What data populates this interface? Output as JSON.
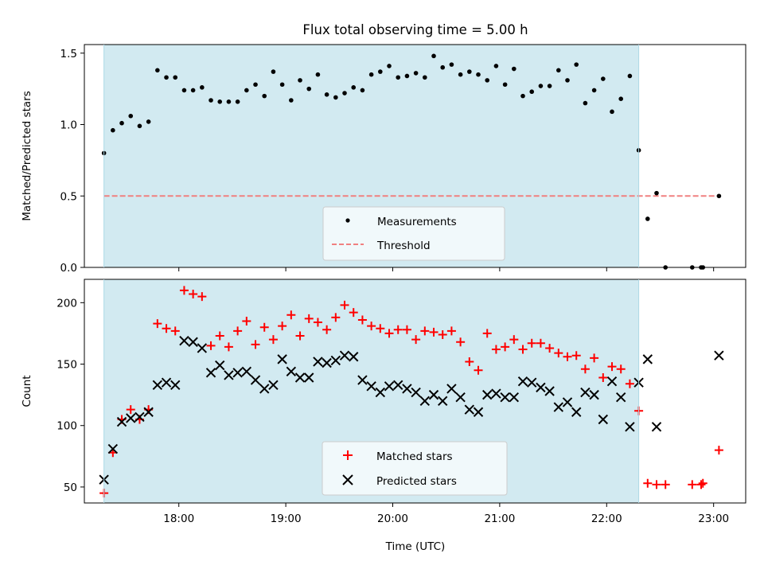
{
  "chart_data": {
    "type": "scatter",
    "title": "Flux total observing time = 5.00 h",
    "xlabel": "Time (UTC)",
    "x_ticks": [
      "18:00",
      "19:00",
      "20:00",
      "21:00",
      "22:00",
      "23:00"
    ],
    "x_range": [
      "17:07",
      "23:18"
    ],
    "shaded_interval": [
      "17:18",
      "22:18"
    ],
    "shade_color": "#add8e6",
    "panels": [
      {
        "ylabel": "Matched/Predicted stars",
        "ylim": [
          0,
          1.56
        ],
        "y_ticks": [
          "0.0",
          "0.5",
          "1.0",
          "1.5"
        ],
        "legend_position": "lower-center",
        "threshold": {
          "name": "Threshold",
          "value": 0.5,
          "color": "#f08080",
          "style": "dashed"
        },
        "series": [
          {
            "name": "Measurements",
            "marker": "dot",
            "color": "#000000",
            "points": [
              [
                "17:18",
                0.8
              ],
              [
                "17:23",
                0.96
              ],
              [
                "17:28",
                1.01
              ],
              [
                "17:33",
                1.06
              ],
              [
                "17:38",
                0.99
              ],
              [
                "17:43",
                1.02
              ],
              [
                "17:48",
                1.38
              ],
              [
                "17:53",
                1.33
              ],
              [
                "17:58",
                1.33
              ],
              [
                "18:03",
                1.24
              ],
              [
                "18:08",
                1.24
              ],
              [
                "18:13",
                1.26
              ],
              [
                "18:18",
                1.17
              ],
              [
                "18:23",
                1.16
              ],
              [
                "18:28",
                1.16
              ],
              [
                "18:33",
                1.16
              ],
              [
                "18:38",
                1.24
              ],
              [
                "18:43",
                1.28
              ],
              [
                "18:48",
                1.2
              ],
              [
                "18:53",
                1.37
              ],
              [
                "18:58",
                1.28
              ],
              [
                "19:03",
                1.17
              ],
              [
                "19:08",
                1.31
              ],
              [
                "19:13",
                1.25
              ],
              [
                "19:18",
                1.35
              ],
              [
                "19:23",
                1.21
              ],
              [
                "19:28",
                1.19
              ],
              [
                "19:33",
                1.22
              ],
              [
                "19:38",
                1.26
              ],
              [
                "19:43",
                1.24
              ],
              [
                "19:48",
                1.35
              ],
              [
                "19:53",
                1.37
              ],
              [
                "19:58",
                1.41
              ],
              [
                "20:03",
                1.33
              ],
              [
                "20:08",
                1.34
              ],
              [
                "20:13",
                1.36
              ],
              [
                "20:18",
                1.33
              ],
              [
                "20:23",
                1.48
              ],
              [
                "20:28",
                1.4
              ],
              [
                "20:33",
                1.42
              ],
              [
                "20:38",
                1.35
              ],
              [
                "20:43",
                1.37
              ],
              [
                "20:48",
                1.35
              ],
              [
                "20:53",
                1.31
              ],
              [
                "20:58",
                1.41
              ],
              [
                "21:03",
                1.28
              ],
              [
                "21:08",
                1.39
              ],
              [
                "21:13",
                1.2
              ],
              [
                "21:18",
                1.23
              ],
              [
                "21:23",
                1.27
              ],
              [
                "21:28",
                1.27
              ],
              [
                "21:33",
                1.38
              ],
              [
                "21:38",
                1.31
              ],
              [
                "21:43",
                1.42
              ],
              [
                "21:48",
                1.15
              ],
              [
                "21:53",
                1.24
              ],
              [
                "21:58",
                1.32
              ],
              [
                "22:03",
                1.09
              ],
              [
                "22:08",
                1.18
              ],
              [
                "22:13",
                1.34
              ],
              [
                "22:18",
                0.82
              ],
              [
                "22:23",
                0.34
              ],
              [
                "22:28",
                0.52
              ],
              [
                "22:33",
                0.0
              ],
              [
                "22:48",
                0.0
              ],
              [
                "22:53",
                0.0
              ],
              [
                "22:54",
                0.0
              ],
              [
                "23:03",
                0.5
              ]
            ]
          }
        ]
      },
      {
        "ylabel": "Count",
        "ylim": [
          37,
          219
        ],
        "y_ticks": [
          "50",
          "100",
          "150",
          "200"
        ],
        "legend_position": "lower-center",
        "series": [
          {
            "name": "Matched stars",
            "marker": "plus",
            "color": "#ff0000",
            "points": [
              [
                "17:18",
                45
              ],
              [
                "17:23",
                78
              ],
              [
                "17:28",
                105
              ],
              [
                "17:33",
                113
              ],
              [
                "17:38",
                105
              ],
              [
                "17:43",
                113
              ],
              [
                "17:48",
                183
              ],
              [
                "17:53",
                179
              ],
              [
                "17:58",
                177
              ],
              [
                "18:03",
                210
              ],
              [
                "18:08",
                207
              ],
              [
                "18:13",
                205
              ],
              [
                "18:18",
                165
              ],
              [
                "18:23",
                173
              ],
              [
                "18:28",
                164
              ],
              [
                "18:33",
                177
              ],
              [
                "18:38",
                185
              ],
              [
                "18:43",
                166
              ],
              [
                "18:48",
                180
              ],
              [
                "18:53",
                170
              ],
              [
                "18:58",
                181
              ],
              [
                "19:03",
                190
              ],
              [
                "19:08",
                173
              ],
              [
                "19:13",
                187
              ],
              [
                "19:18",
                184
              ],
              [
                "19:23",
                178
              ],
              [
                "19:28",
                188
              ],
              [
                "19:33",
                198
              ],
              [
                "19:38",
                192
              ],
              [
                "19:43",
                186
              ],
              [
                "19:48",
                181
              ],
              [
                "19:53",
                179
              ],
              [
                "19:58",
                175
              ],
              [
                "20:03",
                178
              ],
              [
                "20:08",
                178
              ],
              [
                "20:13",
                170
              ],
              [
                "20:18",
                177
              ],
              [
                "20:23",
                176
              ],
              [
                "20:28",
                174
              ],
              [
                "20:33",
                177
              ],
              [
                "20:38",
                168
              ],
              [
                "20:43",
                152
              ],
              [
                "20:48",
                145
              ],
              [
                "20:53",
                175
              ],
              [
                "20:58",
                162
              ],
              [
                "21:03",
                164
              ],
              [
                "21:08",
                170
              ],
              [
                "21:13",
                162
              ],
              [
                "21:18",
                167
              ],
              [
                "21:23",
                167
              ],
              [
                "21:28",
                163
              ],
              [
                "21:33",
                159
              ],
              [
                "21:38",
                156
              ],
              [
                "21:43",
                157
              ],
              [
                "21:48",
                146
              ],
              [
                "21:53",
                155
              ],
              [
                "21:58",
                139
              ],
              [
                "22:03",
                148
              ],
              [
                "22:08",
                146
              ],
              [
                "22:13",
                134
              ],
              [
                "22:18",
                112
              ],
              [
                "22:23",
                53
              ],
              [
                "22:28",
                52
              ],
              [
                "22:33",
                52
              ],
              [
                "22:48",
                52
              ],
              [
                "22:53",
                52
              ],
              [
                "22:54",
                53
              ],
              [
                "23:03",
                80
              ]
            ]
          },
          {
            "name": "Predicted stars",
            "marker": "x",
            "color": "#000000",
            "points": [
              [
                "17:18",
                56
              ],
              [
                "17:23",
                81
              ],
              [
                "17:28",
                103
              ],
              [
                "17:33",
                106
              ],
              [
                "17:38",
                107
              ],
              [
                "17:43",
                111
              ],
              [
                "17:48",
                133
              ],
              [
                "17:53",
                135
              ],
              [
                "17:58",
                133
              ],
              [
                "18:03",
                169
              ],
              [
                "18:08",
                168
              ],
              [
                "18:13",
                163
              ],
              [
                "18:18",
                143
              ],
              [
                "18:23",
                149
              ],
              [
                "18:28",
                141
              ],
              [
                "18:33",
                143
              ],
              [
                "18:38",
                144
              ],
              [
                "18:43",
                137
              ],
              [
                "18:48",
                130
              ],
              [
                "18:53",
                133
              ],
              [
                "18:58",
                154
              ],
              [
                "19:03",
                144
              ],
              [
                "19:08",
                139
              ],
              [
                "19:13",
                139
              ],
              [
                "19:18",
                152
              ],
              [
                "19:23",
                151
              ],
              [
                "19:28",
                153
              ],
              [
                "19:33",
                157
              ],
              [
                "19:38",
                156
              ],
              [
                "19:43",
                137
              ],
              [
                "19:48",
                132
              ],
              [
                "19:53",
                127
              ],
              [
                "19:58",
                132
              ],
              [
                "20:03",
                133
              ],
              [
                "20:08",
                130
              ],
              [
                "20:13",
                127
              ],
              [
                "20:18",
                120
              ],
              [
                "20:23",
                125
              ],
              [
                "20:28",
                120
              ],
              [
                "20:33",
                130
              ],
              [
                "20:38",
                123
              ],
              [
                "20:43",
                113
              ],
              [
                "20:48",
                111
              ],
              [
                "20:53",
                125
              ],
              [
                "20:58",
                126
              ],
              [
                "21:03",
                123
              ],
              [
                "21:08",
                123
              ],
              [
                "21:13",
                136
              ],
              [
                "21:18",
                135
              ],
              [
                "21:23",
                131
              ],
              [
                "21:28",
                128
              ],
              [
                "21:33",
                115
              ],
              [
                "21:38",
                119
              ],
              [
                "21:43",
                111
              ],
              [
                "21:48",
                127
              ],
              [
                "21:53",
                125
              ],
              [
                "21:58",
                105
              ],
              [
                "22:03",
                136
              ],
              [
                "22:08",
                123
              ],
              [
                "22:13",
                99
              ],
              [
                "22:18",
                135
              ],
              [
                "22:23",
                154
              ],
              [
                "22:28",
                99
              ],
              [
                "23:03",
                157
              ]
            ]
          }
        ]
      }
    ]
  }
}
